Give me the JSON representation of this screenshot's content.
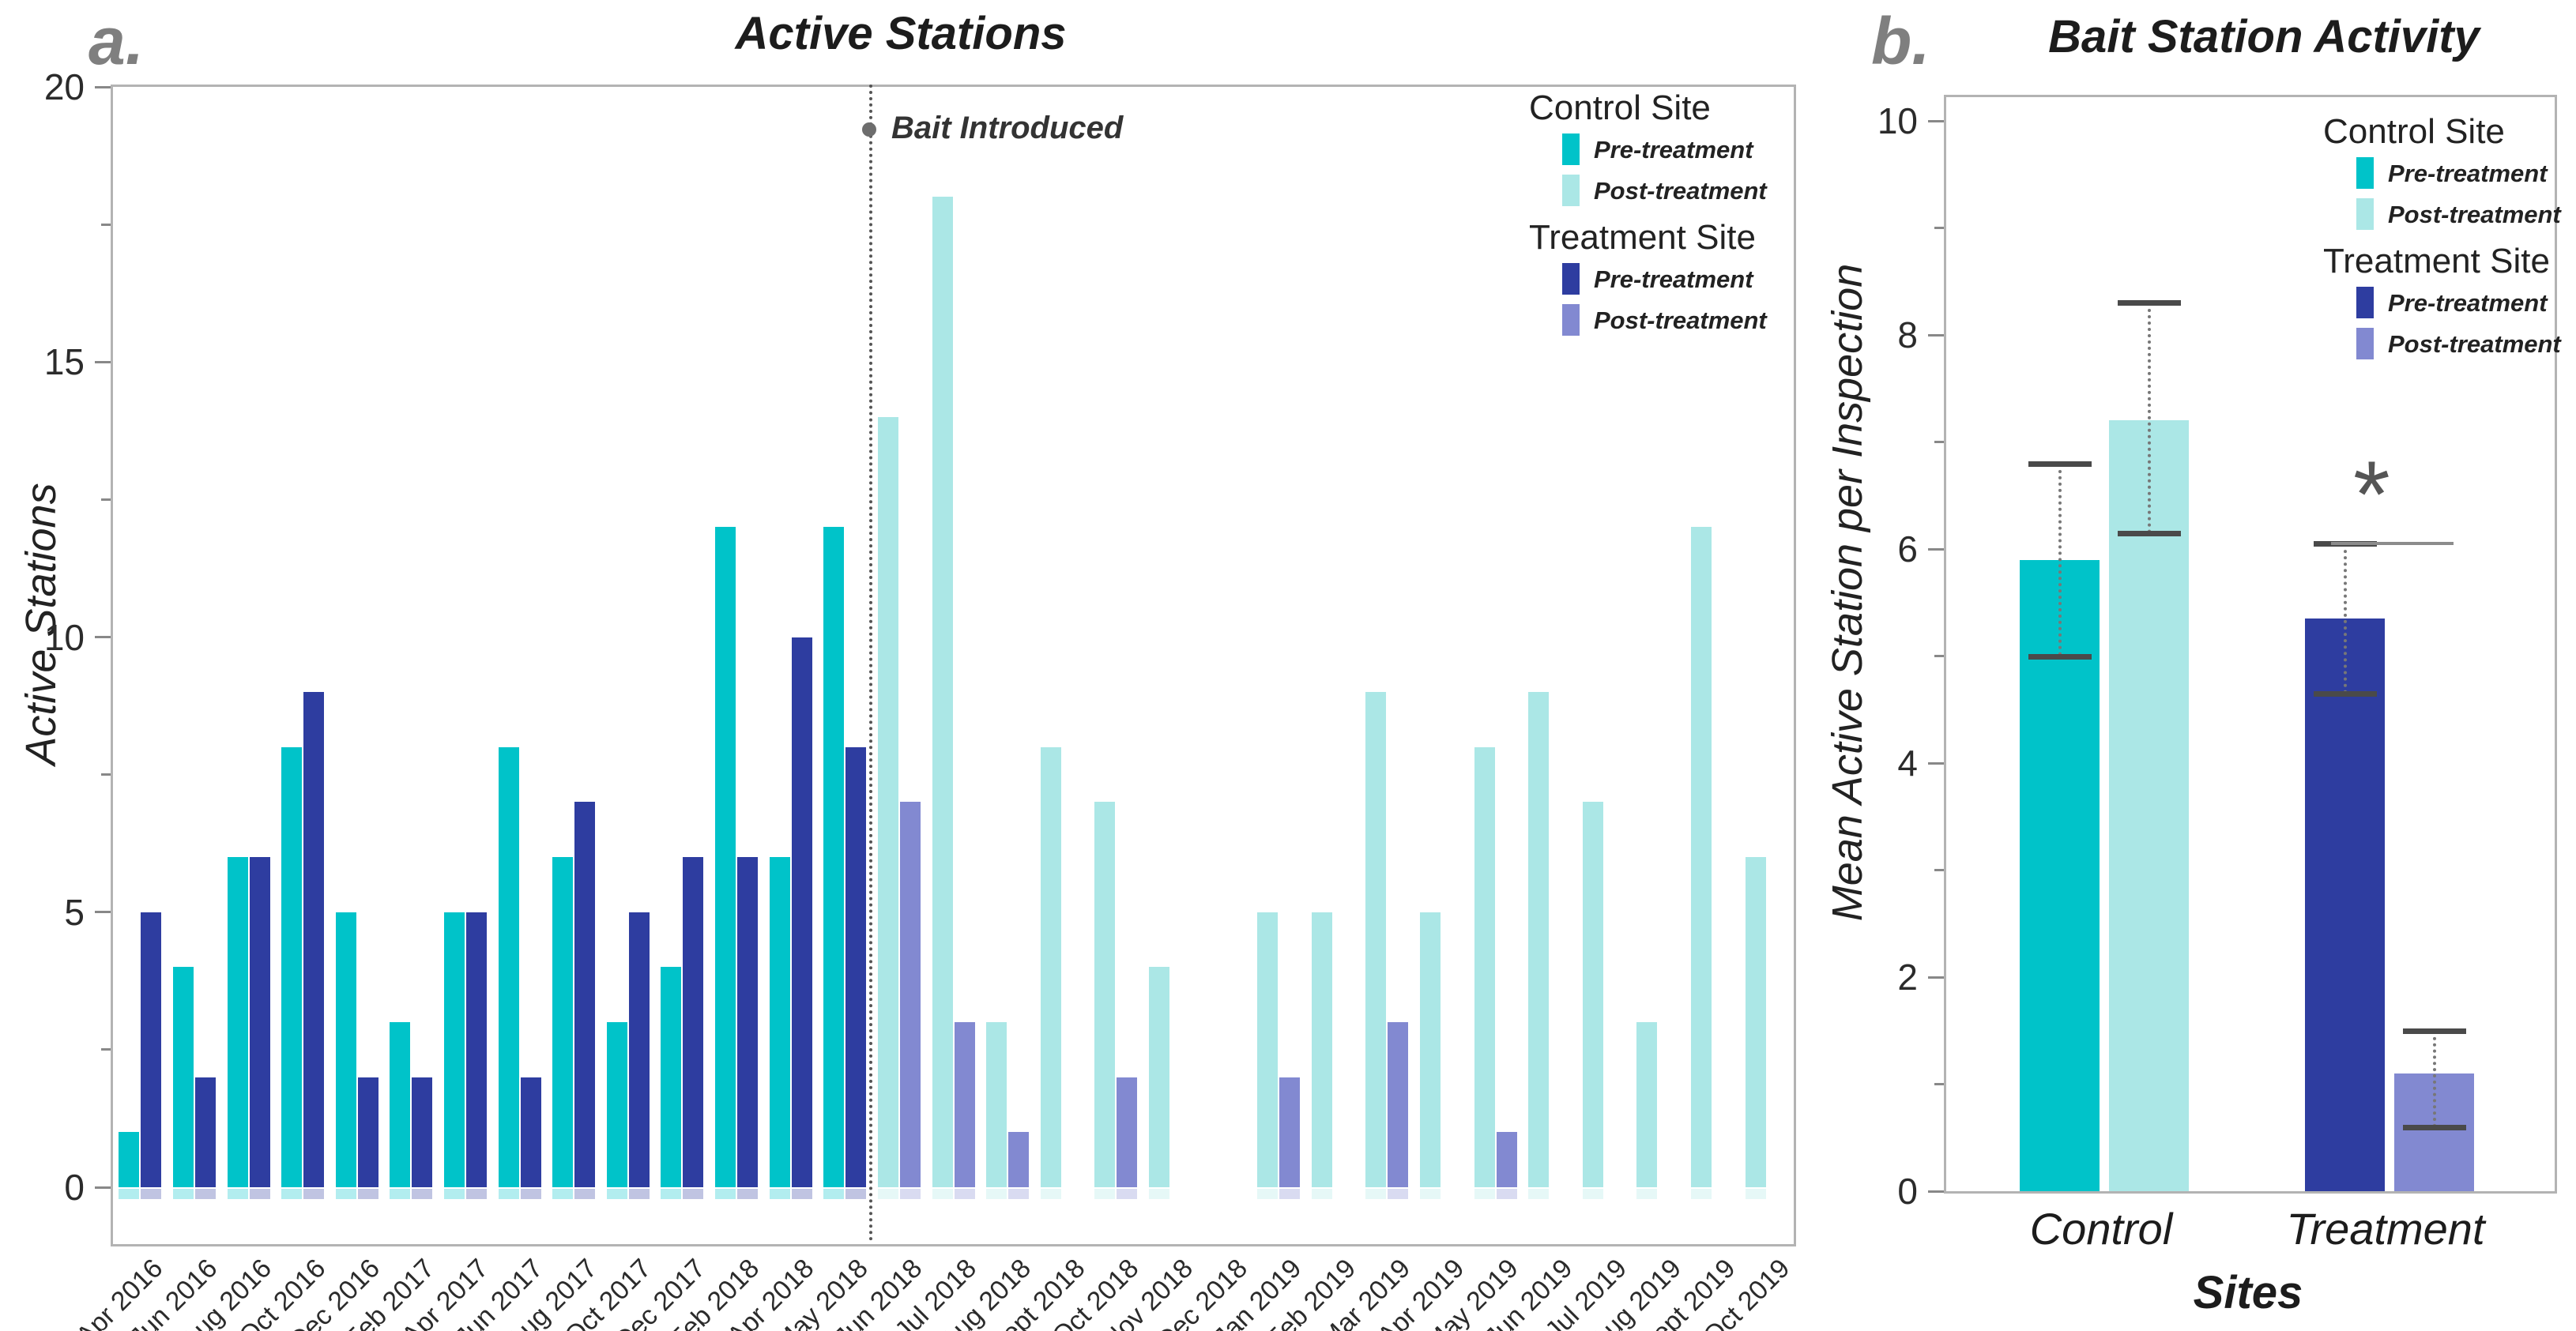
{
  "figure": {
    "panel_a_letter": "a.",
    "panel_b_letter": "b."
  },
  "legend": {
    "control_site": "Control Site",
    "treatment_site": "Treatment Site",
    "pre": "Pre-treatment",
    "post": "Post-treatment"
  },
  "colors": {
    "control_pre": "#00c3c9",
    "control_post": "#abe7e6",
    "treatment_pre": "#2e3da0",
    "treatment_post": "#8289d1",
    "frame": "#b3b3b3",
    "annotation": "#555555",
    "error_bar": "#4a4a4a",
    "significance": "#8c8c8c",
    "panel_letter": "#7f7f7f"
  },
  "chart_data": [
    {
      "type": "bar",
      "panel": "a",
      "title": "Active Stations",
      "ylabel": "Active Stations",
      "xlabel": "",
      "ylim": [
        0,
        20
      ],
      "yticks_major": [
        0,
        5,
        10,
        15,
        20
      ],
      "yticks_minor": [
        2.5,
        7.5,
        12.5,
        17.5
      ],
      "grid": false,
      "legend_position": "top-right",
      "annotation": {
        "text": "Bait Introduced",
        "position": "dashed vertical line between May 2018 and Jun 2018"
      },
      "categories": [
        "Apr 2016",
        "Jun 2016",
        "Aug 2016",
        "Oct 2016",
        "Dec 2016",
        "Feb 2017",
        "Apr 2017",
        "Jun 2017",
        "Aug 2017",
        "Oct 2017",
        "Dec 2017",
        "Feb 2018",
        "Apr 2018",
        "May 2018",
        "Jun 2018",
        "Jul 2018",
        "Aug 2018",
        "Sept 2018",
        "Oct 2018",
        "Nov 2018",
        "Dec 2018",
        "Jan 2019",
        "Feb 2019",
        "Mar 2019",
        "Apr 2019",
        "May 2019",
        "Jun 2019",
        "Jul 2019",
        "Aug 2019",
        "Sept 2019",
        "Oct 2019"
      ],
      "series": [
        {
          "name": "Control Site Pre-treatment",
          "values": [
            1,
            4,
            6,
            8,
            5,
            3,
            5,
            8,
            6,
            3,
            4,
            12,
            6,
            12,
            null,
            null,
            null,
            null,
            null,
            null,
            null,
            null,
            null,
            null,
            null,
            null,
            null,
            null,
            null,
            null,
            null
          ]
        },
        {
          "name": "Control Site Post-treatment",
          "values": [
            null,
            null,
            null,
            null,
            null,
            null,
            null,
            null,
            null,
            null,
            null,
            null,
            null,
            null,
            14,
            18,
            3,
            8,
            7,
            4,
            0,
            5,
            5,
            9,
            5,
            8,
            9,
            7,
            3,
            12,
            6
          ]
        },
        {
          "name": "Treatment Site Pre-treatment",
          "values": [
            5,
            2,
            6,
            9,
            2,
            2,
            5,
            2,
            7,
            5,
            6,
            6,
            10,
            8,
            null,
            null,
            null,
            null,
            null,
            null,
            null,
            null,
            null,
            null,
            null,
            null,
            null,
            null,
            null,
            null,
            null
          ]
        },
        {
          "name": "Treatment Site Post-treatment",
          "values": [
            null,
            null,
            null,
            null,
            null,
            null,
            null,
            null,
            null,
            null,
            null,
            null,
            null,
            null,
            7,
            3,
            1,
            0,
            2,
            0,
            0,
            2,
            0,
            3,
            0,
            1,
            0,
            0,
            0,
            0,
            0
          ]
        }
      ]
    },
    {
      "type": "bar",
      "panel": "b",
      "title": "Bait Station Activity",
      "ylabel": "Mean Active Station per Inspection",
      "xlabel": "Sites",
      "ylim": [
        0,
        10
      ],
      "yticks_major": [
        0,
        2,
        4,
        6,
        8,
        10
      ],
      "yticks_minor": [
        1,
        3,
        5,
        7,
        9
      ],
      "grid": false,
      "legend_position": "top-right",
      "categories": [
        "Control",
        "Treatment"
      ],
      "bars": [
        {
          "group": "Control",
          "phase": "Pre-treatment",
          "value": 5.9,
          "err_low": 5.0,
          "err_high": 6.8
        },
        {
          "group": "Control",
          "phase": "Post-treatment",
          "value": 7.2,
          "err_low": 6.15,
          "err_high": 8.3
        },
        {
          "group": "Treatment",
          "phase": "Pre-treatment",
          "value": 5.35,
          "err_low": 4.65,
          "err_high": 6.05
        },
        {
          "group": "Treatment",
          "phase": "Post-treatment",
          "value": 1.1,
          "err_low": 0.6,
          "err_high": 1.5
        }
      ],
      "significance": {
        "symbol": "*",
        "applies_to": "Treatment",
        "line_value": 6.35
      }
    }
  ]
}
